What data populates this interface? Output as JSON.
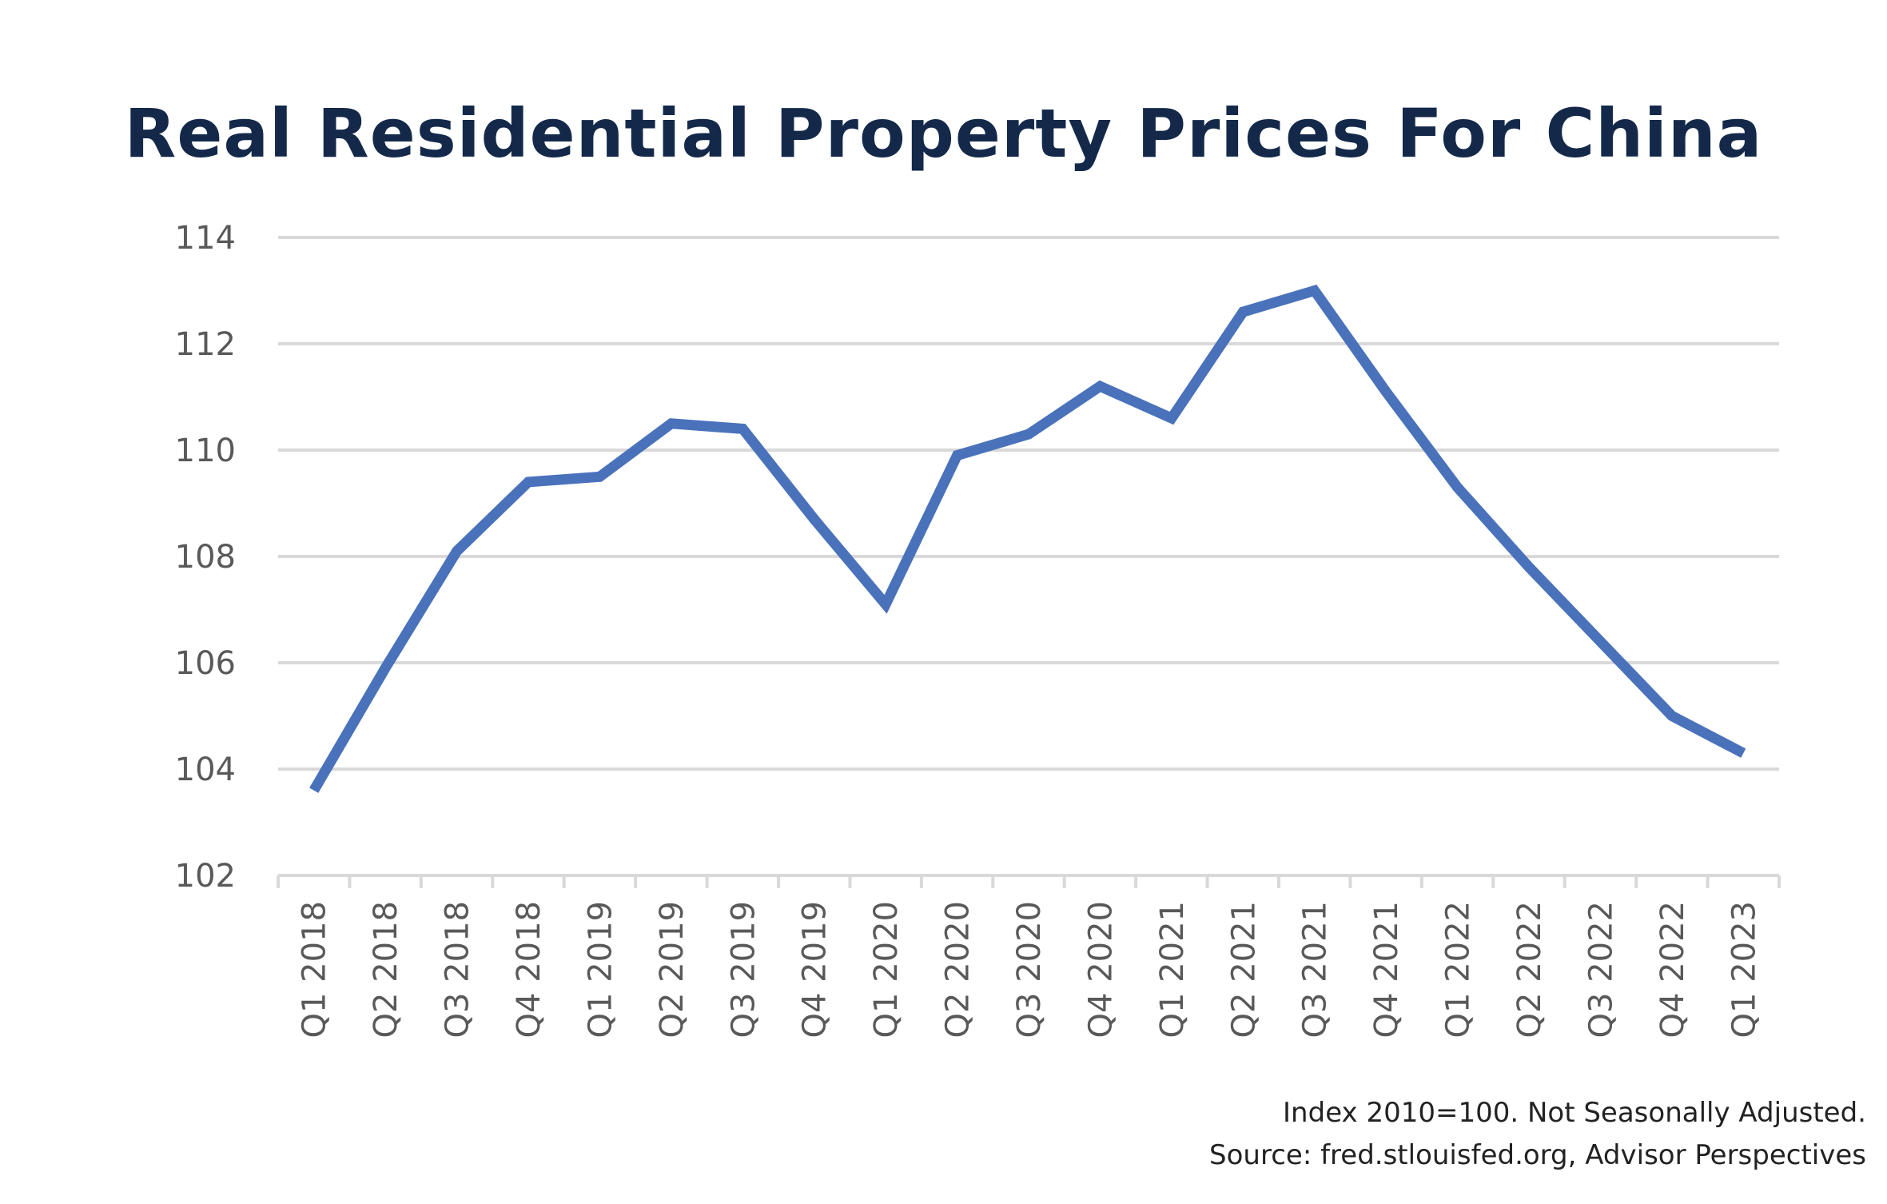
{
  "title": "Real Residential Property Prices For China",
  "footnote": {
    "line1": "Index 2010=100. Not Seasonally Adjusted.",
    "line2": "Source: fred.stlouisfed.org, Advisor Perspectives"
  },
  "colors": {
    "line": "#4a72bb",
    "grid": "#d9d9d9",
    "axis_text": "#595959",
    "title": "#14294a"
  },
  "chart_data": {
    "type": "line",
    "title": "Real Residential Property Prices For China",
    "xlabel": "",
    "ylabel": "",
    "ylim": [
      102,
      114
    ],
    "yticks": [
      102,
      104,
      106,
      108,
      110,
      112,
      114
    ],
    "grid": true,
    "legend": "none",
    "categories": [
      "Q1 2018",
      "Q2 2018",
      "Q3 2018",
      "Q4 2018",
      "Q1 2019",
      "Q2 2019",
      "Q3 2019",
      "Q4 2019",
      "Q1 2020",
      "Q2 2020",
      "Q3 2020",
      "Q4 2020",
      "Q1 2021",
      "Q2 2021",
      "Q3 2021",
      "Q4 2021",
      "Q1 2022",
      "Q2 2022",
      "Q3 2022",
      "Q4 2022",
      "Q1 2023"
    ],
    "series": [
      {
        "values": [
          103.6,
          105.9,
          108.1,
          109.4,
          109.5,
          110.5,
          110.4,
          108.7,
          107.1,
          109.9,
          110.3,
          111.2,
          110.6,
          112.6,
          113.0,
          111.1,
          109.3,
          107.8,
          106.4,
          105.0,
          104.3
        ]
      }
    ]
  }
}
